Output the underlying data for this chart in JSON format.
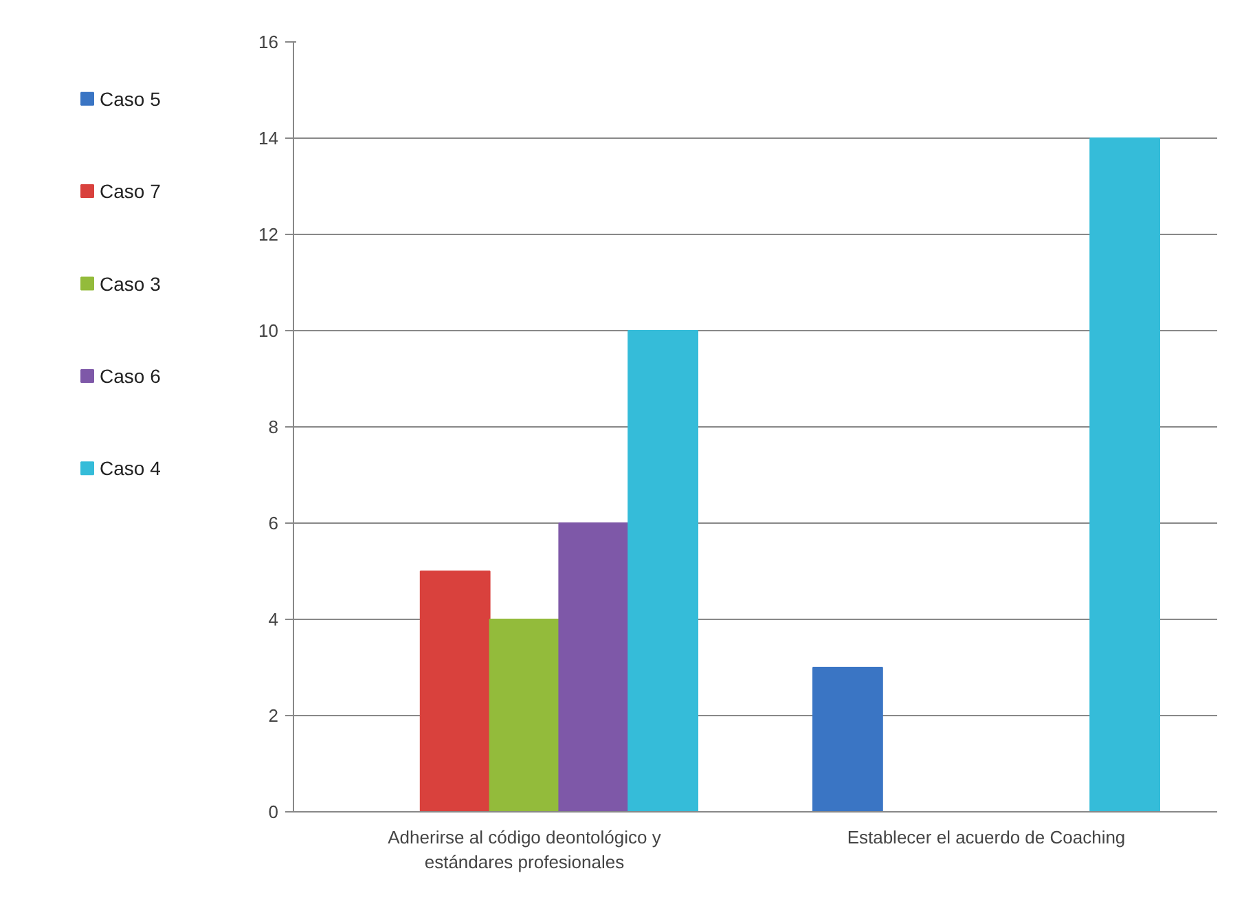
{
  "chart_data": {
    "type": "bar",
    "categories": [
      "Adherirse al código deontológico y\nestándares profesionales",
      "Establecer el acuerdo de Coaching"
    ],
    "series": [
      {
        "name": "Caso 5",
        "color": "#3a75c4",
        "values": [
          null,
          3
        ]
      },
      {
        "name": "Caso 7",
        "color": "#d9413d",
        "values": [
          5,
          null
        ]
      },
      {
        "name": "Caso 3",
        "color": "#93bb3b",
        "values": [
          4,
          null
        ]
      },
      {
        "name": "Caso 6",
        "color": "#7e58a8",
        "values": [
          6,
          null
        ]
      },
      {
        "name": "Caso 4",
        "color": "#35bcd9",
        "values": [
          10,
          14
        ]
      }
    ],
    "ylim": [
      0,
      16
    ],
    "yticks": [
      0,
      2,
      4,
      6,
      8,
      10,
      12,
      14,
      16
    ],
    "grid": "y",
    "legend": "left"
  }
}
